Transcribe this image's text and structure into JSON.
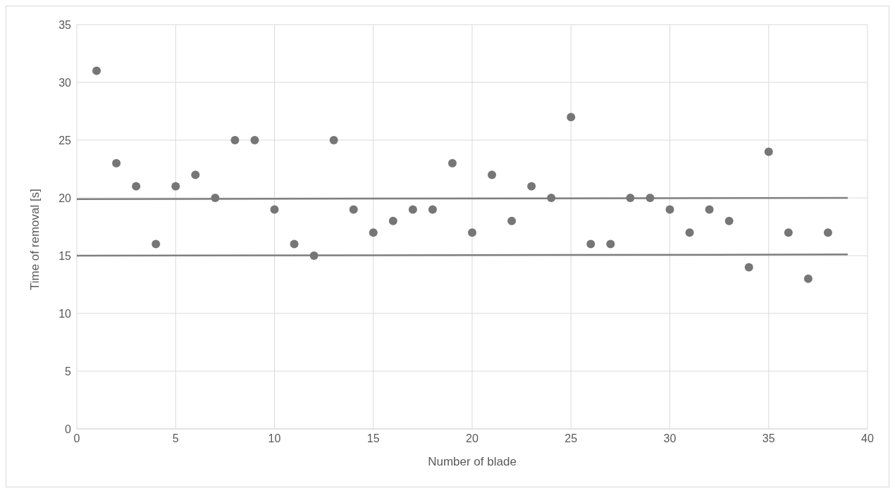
{
  "chart_data": {
    "type": "scatter",
    "xlabel": "Number of blade",
    "ylabel": "Time of removal [s]",
    "xlim": [
      0,
      40
    ],
    "xticks": [
      0,
      5,
      10,
      15,
      20,
      25,
      30,
      35,
      40
    ],
    "ylim": [
      0,
      35
    ],
    "yticks": [
      0,
      5,
      10,
      15,
      20,
      25,
      30,
      35
    ],
    "grid": true,
    "series": [
      {
        "marker": "circle",
        "color": "#767676",
        "x": [
          1,
          2,
          3,
          4,
          5,
          6,
          7,
          8,
          9,
          10,
          11,
          12,
          13,
          14,
          15,
          16,
          17,
          18,
          19,
          20,
          21,
          22,
          23,
          24,
          25,
          26,
          27,
          28,
          29,
          30,
          31,
          32,
          33,
          34,
          35,
          36,
          37,
          38
        ],
        "values": [
          31,
          23,
          21,
          16,
          21,
          22,
          20,
          25,
          25,
          19,
          16,
          15,
          25,
          19,
          17,
          18,
          19,
          19,
          23,
          17,
          22,
          18,
          21,
          20,
          27,
          16,
          16,
          20,
          20,
          19,
          17,
          19,
          18,
          14,
          24,
          17,
          13,
          17
        ]
      },
      {
        "type": "line",
        "marker": "none",
        "color": "#7f7f7f",
        "x": [
          0,
          39
        ],
        "values": [
          19.9,
          20
        ]
      },
      {
        "type": "line",
        "marker": "none",
        "color": "#7f7f7f",
        "x": [
          0,
          39
        ],
        "values": [
          15,
          15.1
        ]
      }
    ]
  }
}
